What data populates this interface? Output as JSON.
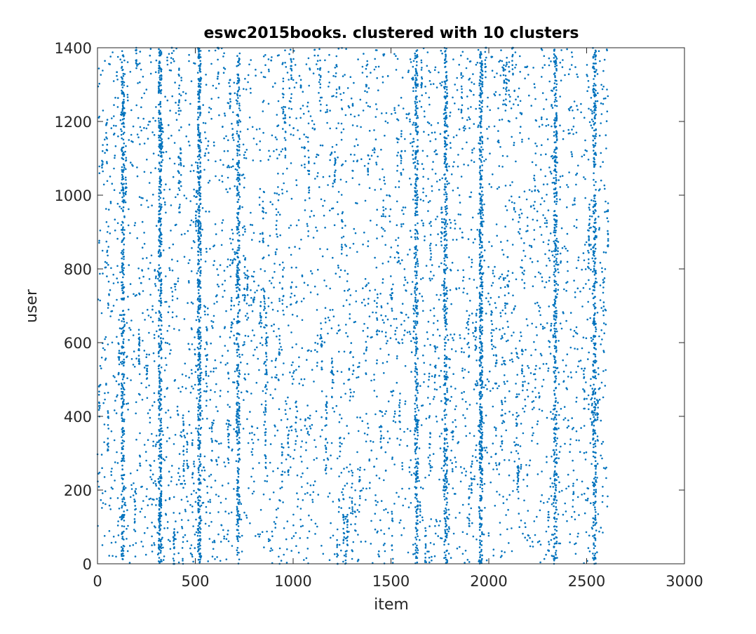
{
  "chart_data": {
    "type": "scatter",
    "title": "eswc2015books. clustered with 10 clusters",
    "xlabel": "item",
    "ylabel": "user",
    "xlim": [
      0,
      3000
    ],
    "ylim": [
      0,
      1400
    ],
    "xticks": [
      0,
      500,
      1000,
      1500,
      2000,
      2500,
      3000
    ],
    "yticks": [
      0,
      200,
      400,
      600,
      800,
      1000,
      1200,
      1400
    ],
    "xtick_labels": [
      "0",
      "500",
      "1000",
      "1500",
      "2000",
      "2500",
      "3000"
    ],
    "ytick_labels": [
      "0",
      "200",
      "400",
      "600",
      "800",
      "1000",
      "1200",
      "1400"
    ],
    "grid": false,
    "legend": "none",
    "marker_color": "#0072BD",
    "x_extent": [
      0,
      2610
    ],
    "dense_item_columns": [
      130,
      320,
      520,
      720,
      1630,
      1780,
      1960,
      2340,
      2540
    ]
  }
}
